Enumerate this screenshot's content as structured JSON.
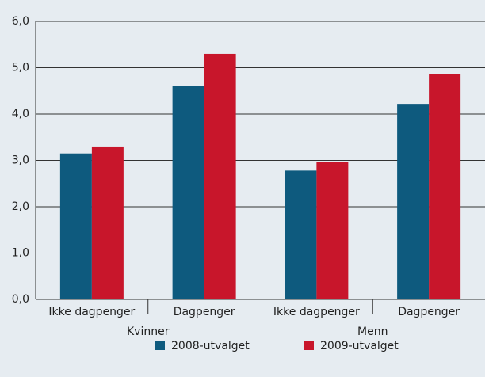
{
  "chart_data": {
    "type": "bar",
    "categories": [
      "Ikke dagpenger",
      "Dagpenger",
      "Ikke dagpenger",
      "Dagpenger"
    ],
    "groups": [
      "Kvinner",
      "Menn"
    ],
    "series": [
      {
        "name": "2008-utvalget",
        "color": "#0e5a7e",
        "values": [
          3.15,
          4.6,
          2.78,
          4.22
        ]
      },
      {
        "name": "2009-utvalget",
        "color": "#c8162b",
        "values": [
          3.3,
          5.3,
          2.97,
          4.87
        ]
      }
    ],
    "ylim": [
      0,
      6
    ],
    "yticks": [
      {
        "value": 0,
        "label": "0,0"
      },
      {
        "value": 1,
        "label": "1,0"
      },
      {
        "value": 2,
        "label": "2,0"
      },
      {
        "value": 3,
        "label": "3,0"
      },
      {
        "value": 4,
        "label": "4,0"
      },
      {
        "value": 5,
        "label": "5,0"
      },
      {
        "value": 6,
        "label": "6,0"
      }
    ],
    "grid": true,
    "legend": "bottom"
  }
}
